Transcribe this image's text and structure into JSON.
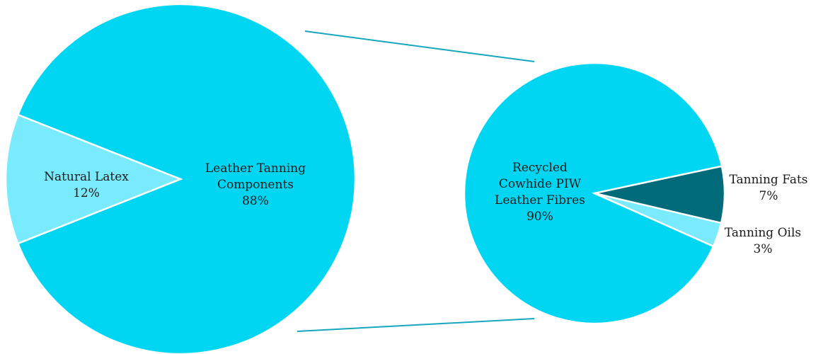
{
  "chart_data": {
    "type": "pie",
    "subtype": "pie-of-pie",
    "colors": {
      "primary": "#00d5f2",
      "light": "#7aebfc",
      "dark": "#016b79",
      "connector": "#16a6bd"
    },
    "main_pie": {
      "slices": [
        {
          "name": "Leather Tanning Components",
          "label_lines": [
            "Leather Tanning",
            "Components"
          ],
          "value": 88,
          "percent_label": "88%",
          "color": "#00d5f2"
        },
        {
          "name": "Natural Latex",
          "label_lines": [
            "Natural Latex"
          ],
          "value": 12,
          "percent_label": "12%",
          "color": "#7aebfc"
        }
      ]
    },
    "secondary_pie": {
      "breaks_down": "Leather Tanning Components",
      "slices": [
        {
          "name": "Recycled Cowhide PIW Leather Fibres",
          "label_lines": [
            "Recycled",
            "Cowhide PIW",
            "Leather Fibres"
          ],
          "value": 90,
          "percent_label": "90%",
          "color": "#00d5f2"
        },
        {
          "name": "Tanning Fats",
          "label_lines": [
            "Tanning Fats"
          ],
          "value": 7,
          "percent_label": "7%",
          "color": "#016b79"
        },
        {
          "name": "Tanning Oils",
          "label_lines": [
            "Tanning Oils"
          ],
          "value": 3,
          "percent_label": "3%",
          "color": "#7aebfc"
        }
      ]
    }
  }
}
